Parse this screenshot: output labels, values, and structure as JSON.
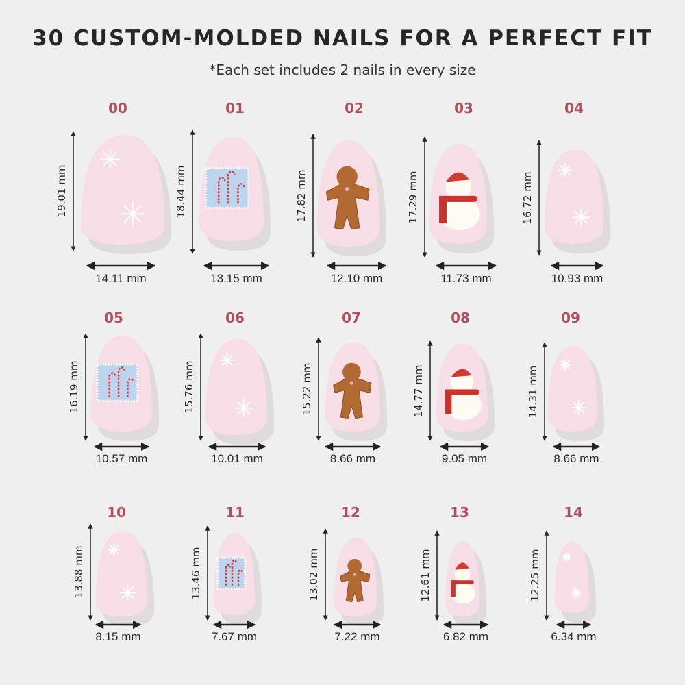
{
  "header": {
    "title": "30 CUSTOM-MOLDED NAILS FOR A PERFECT FIT",
    "subtitle": "*Each set includes 2 nails in every size"
  },
  "colors": {
    "background": "#efefef",
    "size_label": "#b0505e",
    "nail": "#f7dde6",
    "text": "#262626"
  },
  "nails": [
    {
      "size": "00",
      "height": "19.01 mm",
      "width": "14.11 mm",
      "design": "snowflake"
    },
    {
      "size": "01",
      "height": "18.44 mm",
      "width": "13.15 mm",
      "design": "candy-cane-stamp"
    },
    {
      "size": "02",
      "height": "17.82 mm",
      "width": "12.10 mm",
      "design": "gingerbread"
    },
    {
      "size": "03",
      "height": "17.29 mm",
      "width": "11.73 mm",
      "design": "snowman"
    },
    {
      "size": "04",
      "height": "16.72 mm",
      "width": "10.93 mm",
      "design": "snowflake"
    },
    {
      "size": "05",
      "height": "16.19 mm",
      "width": "10.57 mm",
      "design": "candy-cane-stamp"
    },
    {
      "size": "06",
      "height": "15.76 mm",
      "width": "10.01 mm",
      "design": "snowflake"
    },
    {
      "size": "07",
      "height": "15.22 mm",
      "width": "8.66 mm",
      "design": "gingerbread"
    },
    {
      "size": "08",
      "height": "14.77 mm",
      "width": "9.05 mm",
      "design": "snowman"
    },
    {
      "size": "09",
      "height": "14.31 mm",
      "width": "8.66 mm",
      "design": "snowflake"
    },
    {
      "size": "10",
      "height": "13.88 mm",
      "width": "8.15 mm",
      "design": "snowflake"
    },
    {
      "size": "11",
      "height": "13.46 mm",
      "width": "7.67 mm",
      "design": "candy-cane-stamp"
    },
    {
      "size": "12",
      "height": "13.02 mm",
      "width": "7.22 mm",
      "design": "gingerbread"
    },
    {
      "size": "13",
      "height": "12.61 mm",
      "width": "6.82 mm",
      "design": "snowman"
    },
    {
      "size": "14",
      "height": "12.25 mm",
      "width": "6.34 mm",
      "design": "snowflake"
    }
  ]
}
